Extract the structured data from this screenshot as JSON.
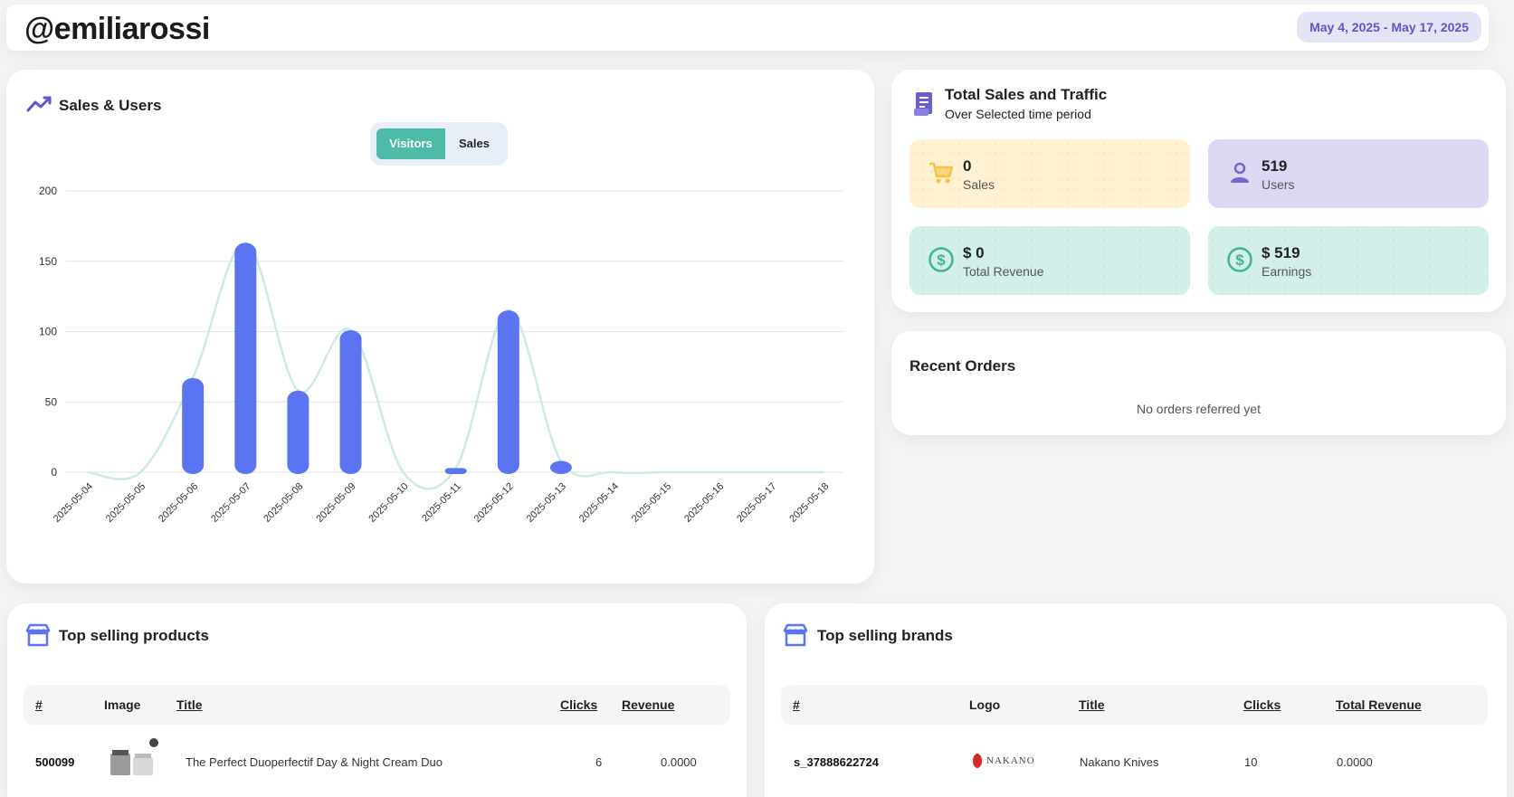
{
  "header": {
    "username": "@emiliarossi",
    "date_range": "May 4, 2025 - May 17, 2025"
  },
  "sales_users": {
    "title": "Sales & Users",
    "toggle": {
      "visitors_label": "Visitors",
      "sales_label": "Sales",
      "active": "Visitors"
    },
    "chart_data": {
      "type": "bar",
      "categories": [
        "2025-05-04",
        "2025-05-05",
        "2025-05-06",
        "2025-05-07",
        "2025-05-08",
        "2025-05-09",
        "2025-05-10",
        "2025-05-11",
        "2025-05-12",
        "2025-05-13",
        "2025-05-14",
        "2025-05-15",
        "2025-05-16",
        "2025-05-17",
        "2025-05-18"
      ],
      "series": [
        {
          "type": "bar",
          "color": "#5b75f2",
          "values": [
            0,
            0,
            67,
            163,
            58,
            101,
            0,
            3,
            115,
            8,
            0,
            0,
            0,
            0,
            0
          ]
        },
        {
          "type": "line",
          "color": "#cdebe4",
          "values": [
            0,
            0,
            67,
            163,
            58,
            101,
            0,
            3,
            115,
            8,
            0,
            0,
            0,
            0,
            0
          ]
        }
      ],
      "yticks": [
        0,
        50,
        100,
        150,
        200
      ],
      "ylim": [
        0,
        200
      ],
      "grid": true
    }
  },
  "traffic": {
    "title": "Total Sales and Traffic",
    "subtitle": "Over Selected time period",
    "stats": [
      {
        "value": "0",
        "label": "Sales",
        "icon": "cart-icon",
        "bg": "#fff1d2",
        "icon_color": "#f6c342"
      },
      {
        "value": "519",
        "label": "Users",
        "icon": "user-icon",
        "bg": "#dcd8f4",
        "icon_color": "#7566cf"
      },
      {
        "value": "$ 0",
        "label": "Total Revenue",
        "icon": "dollar-circle-icon",
        "bg": "#d3efe9",
        "icon_color": "#3fb397"
      },
      {
        "value": "$ 519",
        "label": "Earnings",
        "icon": "dollar-circle-icon",
        "bg": "#d3efe9",
        "icon_color": "#3fb397"
      }
    ]
  },
  "recent_orders": {
    "title": "Recent Orders",
    "empty_text": "No orders referred yet"
  },
  "top_products": {
    "title": "Top selling products",
    "columns": [
      "#",
      "Image",
      "Title",
      "Clicks",
      "Revenue"
    ],
    "rows": [
      {
        "id": "500099",
        "title": "The Perfect Duoperfectif Day & Night Cream Duo",
        "clicks": "6",
        "revenue": "0.0000"
      }
    ]
  },
  "top_brands": {
    "title": "Top selling brands",
    "columns": [
      "#",
      "Logo",
      "Title",
      "Clicks",
      "Total Revenue"
    ],
    "rows": [
      {
        "id": "s_37888622724",
        "logo_text": "NAKANO",
        "title": "Nakano Knives",
        "clicks": "10",
        "revenue": "0.0000"
      }
    ]
  }
}
